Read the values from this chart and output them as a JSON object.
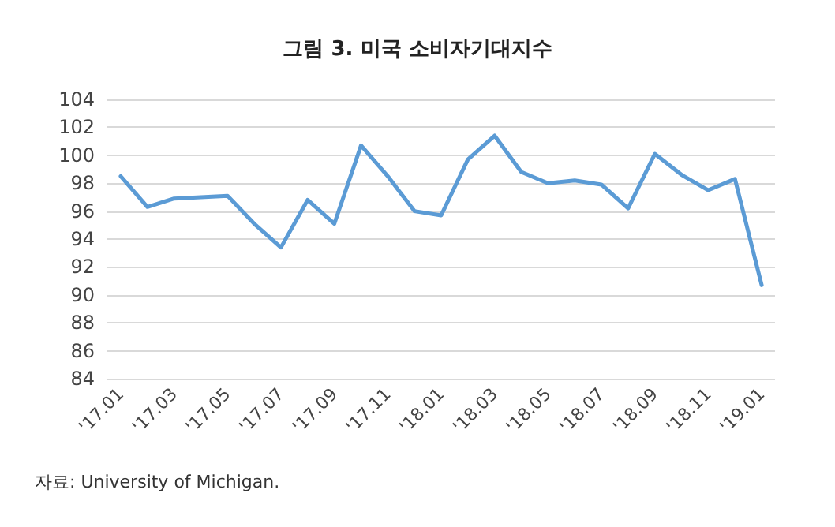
{
  "chart_data": {
    "type": "line",
    "title": "그림 3. 미국 소비자기대지수",
    "categories": [
      "'17.01",
      null,
      "'17.03",
      null,
      "'17.05",
      null,
      "'17.07",
      null,
      "'17.09",
      null,
      "'17.11",
      null,
      "'18.01",
      null,
      "'18.03",
      null,
      "'18.05",
      null,
      "'18.07",
      null,
      "'18.09",
      null,
      "'18.11",
      null,
      "'19.01"
    ],
    "series": [
      {
        "color": "#5b9bd5",
        "values": [
          98.5,
          96.3,
          96.9,
          97.0,
          97.1,
          95.1,
          93.4,
          96.8,
          95.1,
          100.7,
          98.5,
          96.0,
          95.7,
          99.7,
          101.4,
          98.8,
          98.0,
          98.2,
          97.9,
          96.2,
          100.1,
          98.6,
          97.5,
          98.3,
          90.7
        ]
      }
    ],
    "ylim": [
      84,
      104
    ],
    "yticks": [
      84,
      86,
      88,
      90,
      92,
      94,
      96,
      98,
      100,
      102,
      104
    ],
    "grid": "y",
    "marker": "none",
    "line_style": "solid",
    "annotations": [
      "자료: University of Michigan."
    ]
  }
}
